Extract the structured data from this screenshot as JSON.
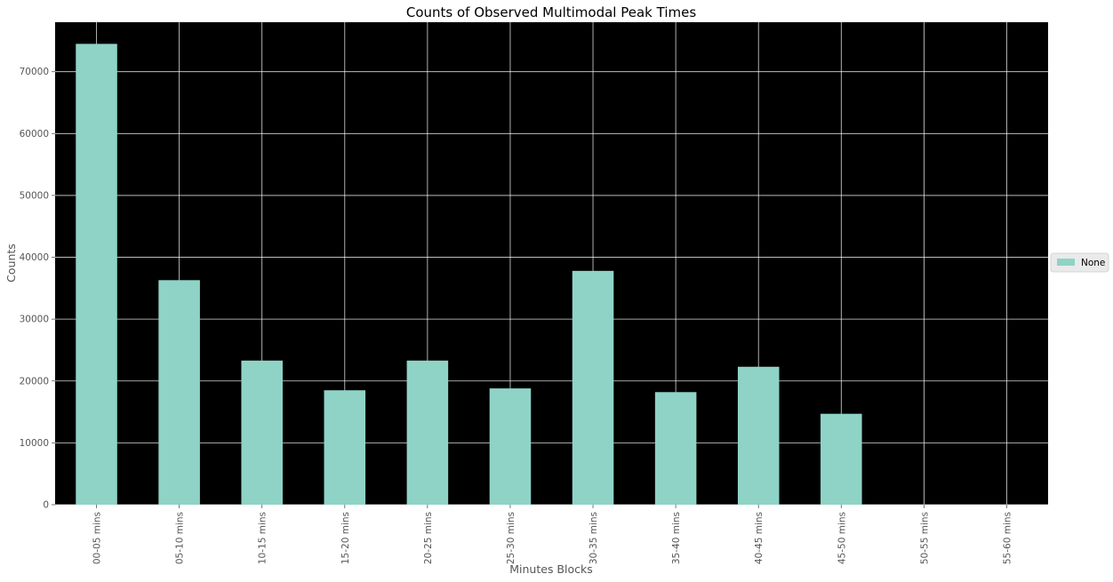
{
  "chart_data": {
    "type": "bar",
    "title": "Counts of Observed Multimodal Peak Times",
    "xlabel": "Minutes Blocks",
    "ylabel": "Counts",
    "categories": [
      "00-05 mins",
      "05-10 mins",
      "10-15 mins",
      "15-20 mins",
      "20-25 mins",
      "25-30 mins",
      "30-35 mins",
      "35-40 mins",
      "40-45 mins",
      "45-50 mins",
      "50-55 mins",
      "55-60 mins"
    ],
    "series": [
      {
        "name": "None",
        "values": [
          74500,
          36300,
          23300,
          18500,
          23300,
          18800,
          37800,
          18200,
          22300,
          14700,
          0,
          0
        ]
      }
    ],
    "ylim": [
      0,
      78000
    ],
    "yticks": [
      0,
      10000,
      20000,
      30000,
      40000,
      50000,
      60000,
      70000
    ],
    "grid": true,
    "legend_position": "center-right",
    "colors": {
      "bar": "#8fd3c7",
      "plot_background": "#000000",
      "grid": "#ffffff",
      "page_background": "#ffffff"
    }
  }
}
